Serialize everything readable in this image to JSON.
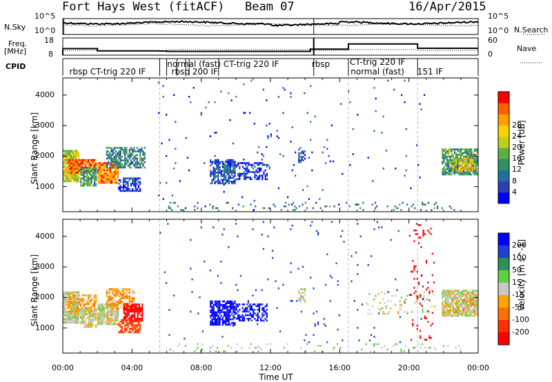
{
  "header": {
    "station": "Fort Hays West (fitACF)",
    "beam": "Beam 07",
    "date": "16/Apr/2015"
  },
  "left_labels": {
    "nsky": "N.Sky",
    "freq_line1": "Freq.",
    "freq_line2": "[MHz]",
    "cpid": "CPID"
  },
  "right_labels": {
    "nsearch": "N.Search",
    "nave": "Nave"
  },
  "noise_panel": {
    "yticks_left": [
      "10^5",
      "10^0"
    ],
    "yticks_right": [
      "10^5",
      "10^0"
    ]
  },
  "freq_panel": {
    "yticks_left": [
      "18",
      "8"
    ],
    "yticks_right": [
      "60",
      "0"
    ]
  },
  "cpid_segments": [
    {
      "label": "rbsp  CT-trig  220  IF",
      "start_hour": 0.3
    },
    {
      "label": "normal  (fast)  CT-trig  220  IF",
      "start_hour": 5.95
    },
    {
      "label": "rbsp  200  IF",
      "start_hour": 6.2
    },
    {
      "label": "rbsp",
      "start_hour": 14.3
    },
    {
      "label": "CT-trig  220  IF",
      "start_hour": 16.5
    },
    {
      "label": "normal  (fast)",
      "start_hour": 16.55
    },
    {
      "label": "151  IF",
      "start_hour": 20.4
    }
  ],
  "mode_change_hours": [
    5.6,
    6.0,
    6.6,
    7.1,
    7.3,
    9.0,
    14.5,
    16.5,
    20.5
  ],
  "chart_data": [
    {
      "type": "heatmap",
      "panel": "power",
      "ylabel": "Slant Range [km]",
      "xlabel": "Time UT",
      "xlim_hours": [
        0,
        24
      ],
      "ylim": [
        180,
        4560
      ],
      "yticks": [
        1000,
        2000,
        3000,
        4000
      ],
      "xticks": [
        "00:00",
        "04:00",
        "08:00",
        "12:00",
        "16:00",
        "20:00",
        "00:00"
      ],
      "colorbar": {
        "label": "Power [dB]",
        "ticks": [
          4,
          8,
          12,
          16,
          20,
          24,
          28
        ],
        "colors": [
          "#0000ff",
          "#2f3fb3",
          "#1f6f9f",
          "#2e8f5f",
          "#5faf3f",
          "#bfcf1f",
          "#ffd000",
          "#ff9f00",
          "#ff5f00",
          "#ff0000"
        ]
      },
      "regions": [
        {
          "t0": 0.0,
          "t1": 1.0,
          "r0": 1150,
          "r1": 2200,
          "value": 18,
          "density": 0.95
        },
        {
          "t0": 0.3,
          "t1": 2.0,
          "r0": 1450,
          "r1": 1900,
          "value": 26,
          "density": 0.9
        },
        {
          "t0": 1.0,
          "t1": 2.0,
          "r0": 1000,
          "r1": 1650,
          "value": 12,
          "density": 0.8
        },
        {
          "t0": 2.0,
          "t1": 3.2,
          "r0": 1100,
          "r1": 1800,
          "value": 24,
          "density": 0.9
        },
        {
          "t0": 2.5,
          "t1": 4.8,
          "r0": 1600,
          "r1": 2300,
          "value": 10,
          "density": 0.7
        },
        {
          "t0": 3.2,
          "t1": 4.5,
          "r0": 850,
          "r1": 1300,
          "value": 5,
          "density": 0.7
        },
        {
          "t0": 8.5,
          "t1": 10.0,
          "r0": 1100,
          "r1": 1900,
          "value": 7,
          "density": 0.75
        },
        {
          "t0": 10.0,
          "t1": 11.8,
          "r0": 1200,
          "r1": 1800,
          "value": 5,
          "density": 0.5
        },
        {
          "t0": 13.6,
          "t1": 14.0,
          "r0": 1800,
          "r1": 2300,
          "value": 8,
          "density": 0.6
        },
        {
          "t0": 21.9,
          "t1": 24.0,
          "r0": 1350,
          "r1": 2250,
          "value": 12,
          "density": 0.85
        },
        {
          "t0": 22.5,
          "t1": 23.8,
          "r0": 1500,
          "r1": 1950,
          "value": 20,
          "density": 0.6
        },
        {
          "t0": 6.0,
          "t1": 23.0,
          "r0": 200,
          "r1": 500,
          "value": 9,
          "density": 0.08
        },
        {
          "t0": 5.5,
          "t1": 21.0,
          "r0": 500,
          "r1": 4500,
          "value": 6,
          "density": 0.012
        }
      ]
    },
    {
      "type": "heatmap",
      "panel": "velocity",
      "ylabel": "Slant Range [km]",
      "xlabel": "Time UT",
      "xlim_hours": [
        0,
        24
      ],
      "ylim": [
        180,
        4560
      ],
      "yticks": [
        1000,
        2000,
        3000,
        4000
      ],
      "xticks": [
        "00:00",
        "04:00",
        "08:00",
        "12:00",
        "16:00",
        "20:00",
        "00:00"
      ],
      "colorbar": {
        "label": "Velocity [m s^-1]",
        "ticks": [
          200,
          100,
          50,
          15,
          -15,
          -50,
          -100,
          -200
        ],
        "colors": [
          "#0000ff",
          "#2040d0",
          "#2e8f5f",
          "#5fcf3f",
          "#c8c8c8",
          "#ffa500",
          "#ff7000",
          "#ff3000",
          "#ff0000"
        ]
      },
      "regions": [
        {
          "t0": 0.0,
          "t1": 1.0,
          "r0": 1150,
          "r1": 2200,
          "value": 0,
          "density": 0.95
        },
        {
          "t0": 0.3,
          "t1": 2.0,
          "r0": 1450,
          "r1": 2100,
          "value": -40,
          "density": 0.6
        },
        {
          "t0": 1.0,
          "t1": 2.0,
          "r0": 1000,
          "r1": 1650,
          "value": 0,
          "density": 0.8
        },
        {
          "t0": 2.0,
          "t1": 3.2,
          "r0": 1100,
          "r1": 1800,
          "value": 0,
          "density": 0.9
        },
        {
          "t0": 2.5,
          "t1": 4.2,
          "r0": 1600,
          "r1": 2300,
          "value": -40,
          "density": 0.6
        },
        {
          "t0": 3.5,
          "t1": 4.6,
          "r0": 1200,
          "r1": 1800,
          "value": -250,
          "density": 0.75
        },
        {
          "t0": 3.2,
          "t1": 4.5,
          "r0": 850,
          "r1": 1300,
          "value": -120,
          "density": 0.7
        },
        {
          "t0": 8.5,
          "t1": 10.0,
          "r0": 1100,
          "r1": 1900,
          "value": 220,
          "density": 0.75
        },
        {
          "t0": 10.0,
          "t1": 11.8,
          "r0": 1200,
          "r1": 1800,
          "value": 210,
          "density": 0.5
        },
        {
          "t0": 13.6,
          "t1": 14.0,
          "r0": 1800,
          "r1": 2300,
          "value": 0,
          "density": 0.6
        },
        {
          "t0": 17.5,
          "t1": 21.5,
          "r0": 1450,
          "r1": 2200,
          "value": 0,
          "density": 0.12
        },
        {
          "t0": 21.9,
          "t1": 24.0,
          "r0": 1350,
          "r1": 2250,
          "value": 0,
          "density": 0.85
        },
        {
          "t0": 22.5,
          "t1": 23.8,
          "r0": 1500,
          "r1": 1950,
          "value": -40,
          "density": 0.3
        },
        {
          "t0": 6.0,
          "t1": 23.0,
          "r0": 200,
          "r1": 500,
          "value": 20,
          "density": 0.08
        },
        {
          "t0": 20.0,
          "t1": 21.5,
          "r0": 600,
          "r1": 4400,
          "value": -250,
          "density": 0.06
        },
        {
          "t0": 5.5,
          "t1": 21.0,
          "r0": 500,
          "r1": 4500,
          "value": 150,
          "density": 0.012
        }
      ]
    }
  ]
}
